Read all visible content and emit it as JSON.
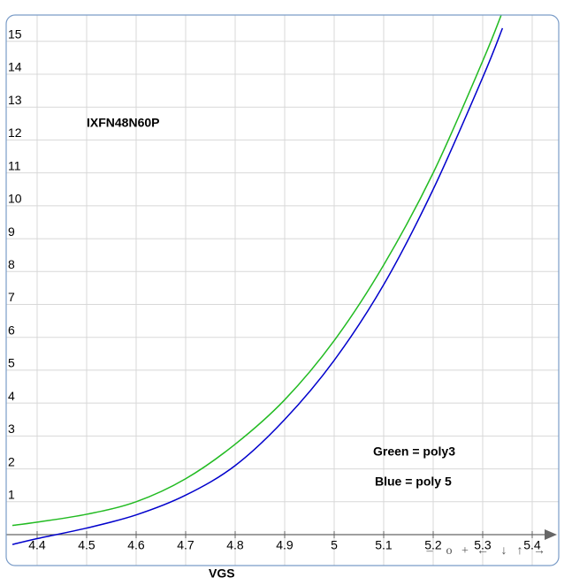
{
  "chart_data": {
    "type": "line",
    "annotations": [
      "IXFN48N60P",
      "Green = poly3",
      "Blue = poly 5"
    ],
    "xlabel": "VGS",
    "x": [
      4.35,
      4.4,
      4.5,
      4.6,
      4.7,
      4.8,
      4.9,
      5.0,
      5.1,
      5.2,
      5.3,
      5.34
    ],
    "series": [
      {
        "color": "#22bb22",
        "values": [
          0.28,
          0.38,
          0.62,
          1.0,
          1.7,
          2.75,
          4.1,
          5.9,
          8.2,
          11.0,
          14.4,
          15.9
        ]
      },
      {
        "color": "#0000cc",
        "values": [
          -0.3,
          -0.12,
          0.2,
          0.6,
          1.2,
          2.1,
          3.5,
          5.3,
          7.6,
          10.5,
          13.9,
          15.4
        ]
      }
    ],
    "xlim": [
      4.3375,
      5.4536
    ],
    "ylim": [
      -0.94,
      15.8
    ],
    "xticks": [
      4.4,
      4.5,
      4.6,
      4.7,
      4.8,
      4.9,
      5,
      5.1,
      5.2,
      5.3,
      5.4
    ],
    "yticks": [
      1,
      2,
      3,
      4,
      5,
      6,
      7,
      8,
      9,
      10,
      11,
      12,
      13,
      14,
      15
    ],
    "grid": true,
    "controls": [
      "–",
      "o",
      "+",
      "←",
      "↓",
      "↑",
      "→"
    ]
  }
}
